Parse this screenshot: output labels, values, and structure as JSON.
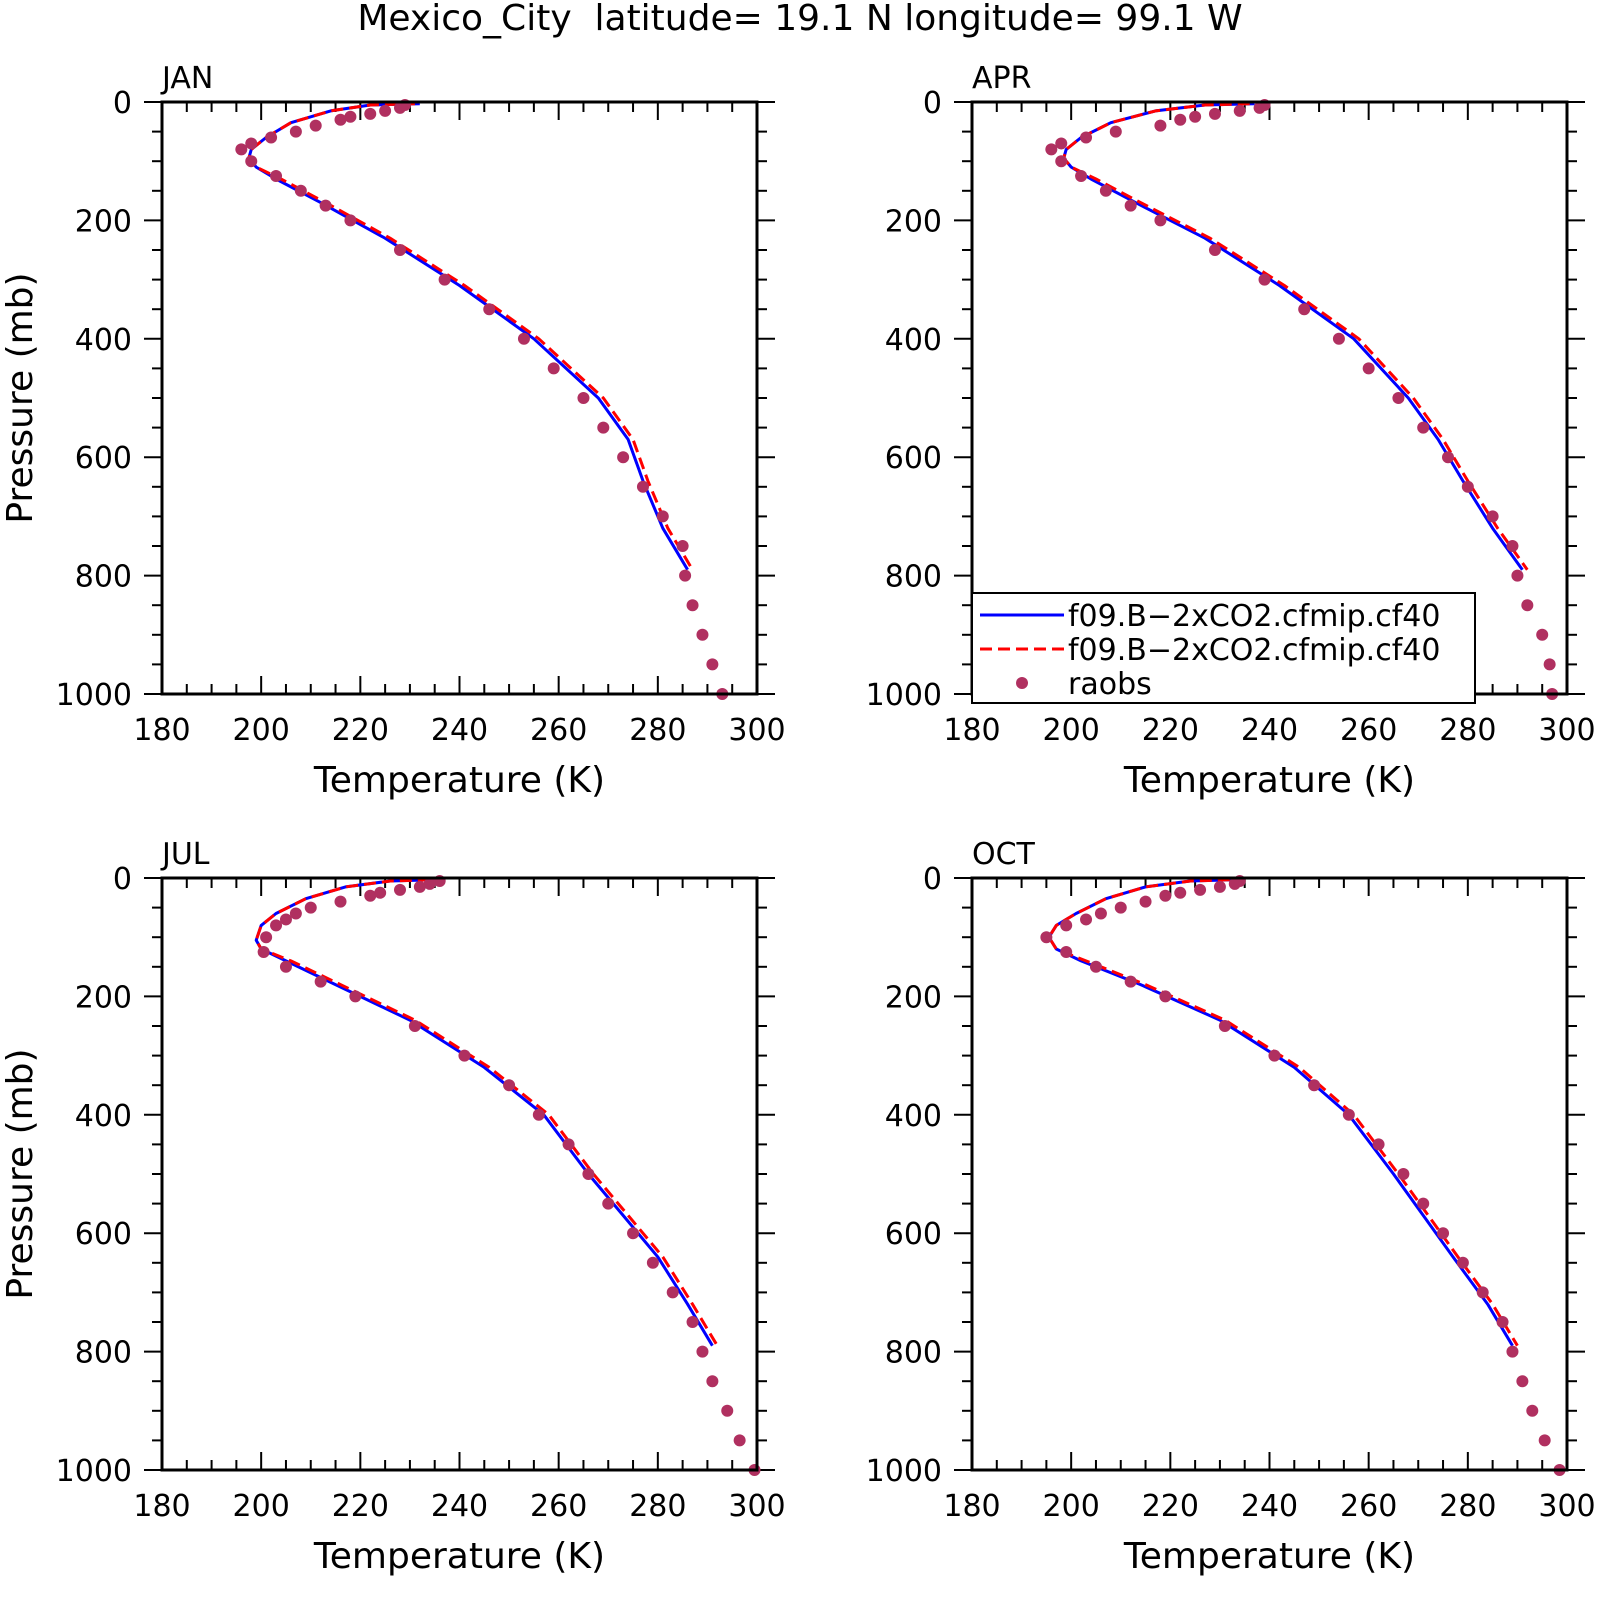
{
  "figure": {
    "title": "Mexico_City  latitude= 19.1 N longitude= 99.1 W"
  },
  "legend": {
    "entries": [
      {
        "label": "f09.B−2xCO2.cfmip.cf40",
        "style": "solid",
        "color": "#0000ff"
      },
      {
        "label": "f09.B−2xCO2.cfmip.cf40",
        "style": "dashed",
        "color": "#ff0000"
      },
      {
        "label": "raobs",
        "style": "dots",
        "color": "#b03060"
      }
    ]
  },
  "colors": {
    "model_solid": "#0000ff",
    "model_dashed": "#ff0000",
    "raobs": "#b03060",
    "axes": "#000000"
  },
  "chart_data": [
    {
      "type": "line",
      "panel_label": "JAN",
      "xlabel": "Temperature (K)",
      "ylabel": "Pressure (mb)",
      "xlim": [
        180,
        300
      ],
      "ylim": [
        0,
        1000
      ],
      "y_inverted": true,
      "xticks": [
        "180",
        "200",
        "220",
        "240",
        "260",
        "280",
        "300"
      ],
      "yticks": [
        "0",
        "200",
        "400",
        "600",
        "800",
        "1000"
      ],
      "series": [
        {
          "style": "solid",
          "x": [
            232,
            222,
            214,
            206,
            201,
            198,
            197.5,
            199,
            203,
            212,
            225,
            240,
            255,
            268,
            274,
            277,
            281,
            286
          ],
          "y": [
            3,
            5,
            15,
            35,
            60,
            80,
            95,
            110,
            130,
            170,
            230,
            310,
            400,
            500,
            570,
            640,
            720,
            790
          ]
        },
        {
          "style": "dashed",
          "x": [
            231,
            222,
            214,
            206,
            201,
            198,
            197.5,
            199,
            204,
            213,
            226,
            241,
            256,
            269,
            275,
            278,
            282,
            287
          ],
          "y": [
            3,
            5,
            15,
            35,
            60,
            80,
            95,
            110,
            130,
            170,
            230,
            310,
            400,
            500,
            570,
            640,
            720,
            790
          ]
        },
        {
          "style": "dots",
          "x": [
            229,
            228,
            225,
            222,
            218,
            216,
            211,
            207,
            202,
            198,
            196,
            198,
            203,
            208,
            213,
            218,
            228,
            237,
            246,
            253,
            259,
            265,
            269,
            273,
            277,
            281,
            285,
            285.5,
            287,
            289,
            291,
            293
          ],
          "y": [
            5,
            10,
            15,
            20,
            25,
            30,
            40,
            50,
            60,
            70,
            80,
            100,
            125,
            150,
            175,
            200,
            250,
            300,
            350,
            400,
            450,
            500,
            550,
            600,
            650,
            700,
            750,
            800,
            850,
            900,
            950,
            1000
          ]
        }
      ]
    },
    {
      "type": "line",
      "panel_label": "APR",
      "xlabel": "Temperature (K)",
      "ylabel": "",
      "xlim": [
        180,
        300
      ],
      "ylim": [
        0,
        1000
      ],
      "y_inverted": true,
      "xticks": [
        "180",
        "200",
        "220",
        "240",
        "260",
        "280",
        "300"
      ],
      "yticks": [
        "0",
        "200",
        "400",
        "600",
        "800",
        "1000"
      ],
      "series": [
        {
          "style": "solid",
          "x": [
            237,
            227,
            217,
            208,
            202,
            199,
            198.5,
            200,
            204,
            213,
            227,
            242,
            257,
            268,
            274,
            279,
            285,
            291
          ],
          "y": [
            3,
            5,
            15,
            35,
            60,
            80,
            95,
            110,
            130,
            170,
            230,
            310,
            400,
            500,
            570,
            640,
            720,
            790
          ]
        },
        {
          "style": "dashed",
          "x": [
            236,
            227,
            217,
            208,
            202,
            199,
            198.5,
            200,
            205,
            214,
            228,
            243,
            258,
            269,
            275,
            280,
            286,
            292
          ],
          "y": [
            3,
            5,
            15,
            35,
            60,
            80,
            95,
            110,
            130,
            170,
            230,
            310,
            400,
            500,
            570,
            640,
            720,
            790
          ]
        },
        {
          "style": "dots",
          "x": [
            239,
            238,
            234,
            229,
            225,
            222,
            218,
            209,
            203,
            198,
            196,
            198,
            202,
            207,
            212,
            218,
            229,
            239,
            247,
            254,
            260,
            266,
            271,
            276,
            280,
            285,
            289,
            290,
            292,
            295,
            296.5,
            297
          ],
          "y": [
            5,
            10,
            15,
            20,
            25,
            30,
            40,
            50,
            60,
            70,
            80,
            100,
            125,
            150,
            175,
            200,
            250,
            300,
            350,
            400,
            450,
            500,
            550,
            600,
            650,
            700,
            750,
            800,
            850,
            900,
            950,
            1000
          ]
        }
      ]
    },
    {
      "type": "line",
      "panel_label": "JUL",
      "xlabel": "Temperature (K)",
      "ylabel": "Pressure (mb)",
      "xlim": [
        180,
        300
      ],
      "ylim": [
        0,
        1000
      ],
      "y_inverted": true,
      "xticks": [
        "180",
        "200",
        "220",
        "240",
        "260",
        "280",
        "300"
      ],
      "yticks": [
        "0",
        "200",
        "400",
        "600",
        "800",
        "1000"
      ],
      "series": [
        {
          "style": "solid",
          "x": [
            235,
            226,
            217,
            209,
            203,
            200,
            199,
            200,
            205,
            215,
            230,
            245,
            257,
            266,
            273,
            280,
            286,
            291
          ],
          "y": [
            3,
            5,
            15,
            35,
            60,
            80,
            105,
            120,
            140,
            180,
            240,
            320,
            400,
            500,
            570,
            640,
            720,
            790
          ]
        },
        {
          "style": "dashed",
          "x": [
            234,
            226,
            217,
            209,
            203,
            200,
            199,
            200,
            206,
            216,
            231,
            246,
            258,
            267,
            274,
            281,
            287,
            292
          ],
          "y": [
            3,
            5,
            15,
            35,
            60,
            80,
            105,
            120,
            140,
            180,
            240,
            320,
            400,
            500,
            570,
            640,
            720,
            790
          ]
        },
        {
          "style": "dots",
          "x": [
            236,
            234,
            232,
            228,
            224,
            222,
            216,
            210,
            207,
            205,
            203,
            201,
            200.5,
            205,
            212,
            219,
            231,
            241,
            250,
            256,
            262,
            266,
            270,
            275,
            279,
            283,
            287,
            289,
            291,
            294,
            296.5,
            299.5
          ],
          "y": [
            5,
            10,
            15,
            20,
            25,
            30,
            40,
            50,
            60,
            70,
            80,
            100,
            125,
            150,
            175,
            200,
            250,
            300,
            350,
            400,
            450,
            500,
            550,
            600,
            650,
            700,
            750,
            800,
            850,
            900,
            950,
            1000
          ]
        }
      ]
    },
    {
      "type": "line",
      "panel_label": "OCT",
      "xlabel": "Temperature (K)",
      "ylabel": "",
      "xlim": [
        180,
        300
      ],
      "ylim": [
        0,
        1000
      ],
      "y_inverted": true,
      "xticks": [
        "180",
        "200",
        "220",
        "240",
        "260",
        "280",
        "300"
      ],
      "yticks": [
        "0",
        "200",
        "400",
        "600",
        "800",
        "1000"
      ],
      "series": [
        {
          "style": "solid",
          "x": [
            233,
            224,
            215,
            207,
            201,
            197,
            195.5,
            197,
            202,
            214,
            230,
            245,
            256,
            265,
            271,
            277,
            284,
            289
          ],
          "y": [
            3,
            5,
            15,
            35,
            60,
            80,
            100,
            120,
            140,
            180,
            240,
            320,
            400,
            500,
            570,
            640,
            720,
            790
          ]
        },
        {
          "style": "dashed",
          "x": [
            232,
            224,
            215,
            207,
            201,
            197,
            195.5,
            197,
            203,
            215,
            231,
            246,
            257,
            266,
            272,
            278,
            285,
            290
          ],
          "y": [
            3,
            5,
            15,
            35,
            60,
            80,
            100,
            120,
            140,
            180,
            240,
            320,
            400,
            500,
            570,
            640,
            720,
            790
          ]
        },
        {
          "style": "dots",
          "x": [
            234,
            233,
            230,
            226,
            222,
            219,
            215,
            210,
            206,
            203,
            199,
            195,
            199,
            205,
            212,
            219,
            231,
            241,
            249,
            256,
            262,
            267,
            271,
            275,
            279,
            283,
            287,
            289,
            291,
            293,
            295.5,
            298.5
          ],
          "y": [
            5,
            10,
            15,
            20,
            25,
            30,
            40,
            50,
            60,
            70,
            80,
            100,
            125,
            150,
            175,
            200,
            250,
            300,
            350,
            400,
            450,
            500,
            550,
            600,
            650,
            700,
            750,
            800,
            850,
            900,
            950,
            1000
          ]
        }
      ]
    }
  ]
}
